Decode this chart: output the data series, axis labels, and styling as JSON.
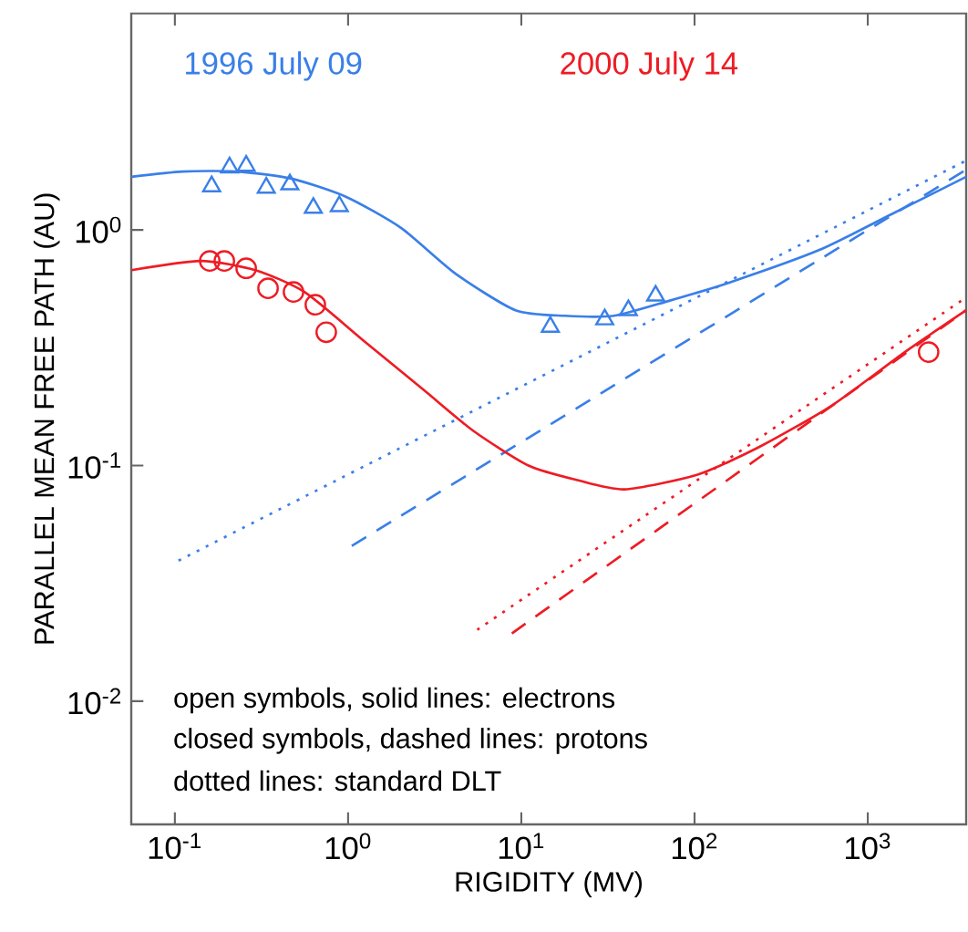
{
  "chart_data": {
    "type": "line",
    "xlabel": "RIGIDITY (MV)",
    "ylabel": "PARALLEL MEAN FREE PATH (AU)",
    "log": "xy",
    "xlim": [
      0.056,
      3700
    ],
    "ylim": [
      0.003,
      8.3
    ],
    "xticks": [
      {
        "value": 0.1,
        "label": "10$^{-1}$"
      },
      {
        "value": 1,
        "label": "10$^{0}$"
      },
      {
        "value": 10,
        "label": "10$^{1}$"
      },
      {
        "value": 100,
        "label": "10$^{2}$"
      },
      {
        "value": 1000,
        "label": "10$^{3}$"
      }
    ],
    "yticks": [
      {
        "value": 0.01,
        "label": "10$^{-2}$"
      },
      {
        "value": 0.1,
        "label": "10$^{-1}$"
      },
      {
        "value": 1,
        "label": "10$^{0}$"
      }
    ],
    "annotations": [
      "open symbols, solid lines:  electrons",
      "closed symbols, dashed lines:  protons",
      "dotted lines:  standard DLT"
    ],
    "series": [
      {
        "name": "1996 July 09",
        "color": "#3a7fe8",
        "line_style": "solid",
        "x": [
          0.0562,
          0.111,
          0.229,
          0.472,
          0.976,
          2.02,
          4.17,
          9.25,
          17.8,
          34.2,
          70.6,
          157,
          526,
          1384,
          3700
        ],
        "values": [
          1.68,
          1.77,
          1.77,
          1.65,
          1.38,
          1.02,
          0.652,
          0.456,
          0.432,
          0.432,
          0.499,
          0.596,
          0.822,
          1.17,
          1.68
        ]
      },
      {
        "type": "line",
        "color": "#3a7fe8",
        "line_style": "dashed",
        "x": [
          1.05,
          3700
        ],
        "values": [
          0.0456,
          1.8
        ]
      },
      {
        "type": "line",
        "color": "#3a7fe8",
        "line_style": "dotted",
        "x": [
          0.105,
          3700
        ],
        "values": [
          0.0395,
          1.97
        ]
      },
      {
        "type": "scatter",
        "color": "#3a7fe8",
        "marker": "triangle",
        "x": [
          0.163,
          0.207,
          0.258,
          0.337,
          0.461,
          0.63,
          0.89
        ],
        "values": [
          1.53,
          1.84,
          1.87,
          1.51,
          1.56,
          1.24,
          1.26
        ]
      },
      {
        "type": "scatter",
        "color": "#3a7fe8",
        "marker": "triangle",
        "x": [
          14.7,
          30.3,
          41.5,
          59.6
        ],
        "values": [
          0.388,
          0.417,
          0.456,
          0.526
        ]
      },
      {
        "name": "2000 July 14",
        "color": "#ee1c24",
        "line_style": "solid",
        "x": [
          0.0562,
          0.141,
          0.291,
          0.56,
          1.24,
          2.76,
          5.31,
          11.0,
          21.1,
          39.5,
          104,
          237,
          622,
          1637,
          3700
        ],
        "values": [
          0.675,
          0.738,
          0.675,
          0.545,
          0.337,
          0.208,
          0.14,
          0.1,
          0.0867,
          0.0793,
          0.0915,
          0.12,
          0.18,
          0.303,
          0.456
        ]
      },
      {
        "type": "line",
        "color": "#ee1c24",
        "line_style": "dashed",
        "x": [
          8.82,
          3700
        ],
        "values": [
          0.0194,
          0.456
        ]
      },
      {
        "type": "line",
        "color": "#ee1c24",
        "line_style": "dotted",
        "x": [
          5.57,
          3700
        ],
        "values": [
          0.0201,
          0.517
        ]
      },
      {
        "type": "scatter",
        "color": "#ee1c24",
        "marker": "circle",
        "x": [
          0.159,
          0.193,
          0.258,
          0.345,
          0.484,
          0.647,
          0.748
        ],
        "values": [
          0.738,
          0.738,
          0.687,
          0.565,
          0.545,
          0.481,
          0.368
        ]
      },
      {
        "type": "scatter",
        "color": "#ee1c24",
        "marker": "circle",
        "x": [
          2245
        ],
        "values": [
          0.303
        ]
      }
    ]
  }
}
